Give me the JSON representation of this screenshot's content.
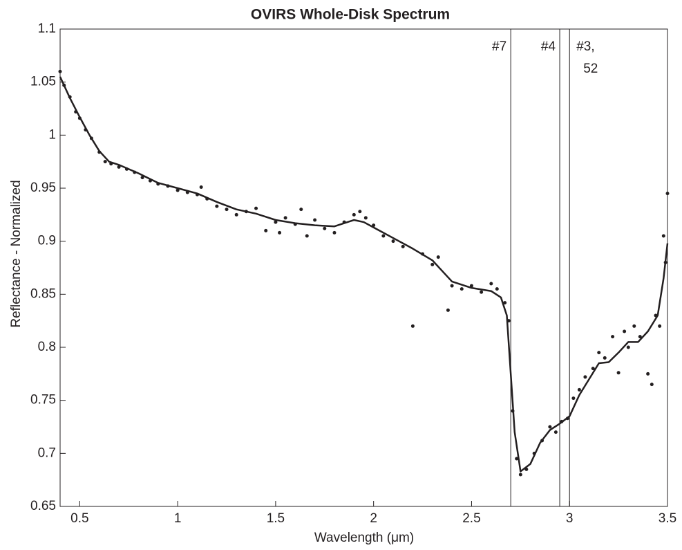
{
  "chart_data": {
    "type": "scatter",
    "title": "OVIRS Whole-Disk Spectrum",
    "x_label": "Wavelength (μm)",
    "y_label": "Reflectance - Normalized",
    "xlim": [
      0.4,
      3.5
    ],
    "ylim": [
      0.65,
      1.1
    ],
    "xticks": [
      0.5,
      1,
      1.5,
      2,
      2.5,
      3,
      3.5
    ],
    "yticks": [
      0.65,
      0.7,
      0.75,
      0.8,
      0.85,
      0.9,
      0.95,
      1,
      1.05,
      1.1
    ],
    "grid": false,
    "color": "#231f20",
    "points": {
      "x": [
        0.4,
        0.42,
        0.45,
        0.48,
        0.5,
        0.53,
        0.56,
        0.6,
        0.63,
        0.66,
        0.7,
        0.74,
        0.78,
        0.82,
        0.86,
        0.9,
        0.95,
        1.0,
        1.05,
        1.1,
        1.12,
        1.15,
        1.2,
        1.25,
        1.3,
        1.35,
        1.4,
        1.45,
        1.5,
        1.52,
        1.55,
        1.6,
        1.63,
        1.66,
        1.7,
        1.75,
        1.8,
        1.85,
        1.9,
        1.93,
        1.96,
        2.0,
        2.05,
        2.1,
        2.15,
        2.2,
        2.25,
        2.3,
        2.33,
        2.38,
        2.4,
        2.45,
        2.5,
        2.55,
        2.6,
        2.63,
        2.67,
        2.69,
        2.71,
        2.73,
        2.75,
        2.78,
        2.82,
        2.86,
        2.9,
        2.93,
        2.96,
        2.99,
        3.02,
        3.05,
        3.08,
        3.12,
        3.15,
        3.18,
        3.22,
        3.25,
        3.28,
        3.3,
        3.33,
        3.36,
        3.4,
        3.42,
        3.44,
        3.46,
        3.48,
        3.49,
        3.5
      ],
      "values": [
        1.06,
        1.047,
        1.036,
        1.022,
        1.016,
        1.005,
        0.997,
        0.984,
        0.975,
        0.973,
        0.97,
        0.968,
        0.965,
        0.96,
        0.957,
        0.954,
        0.952,
        0.948,
        0.946,
        0.944,
        0.951,
        0.94,
        0.933,
        0.93,
        0.925,
        0.928,
        0.931,
        0.91,
        0.918,
        0.908,
        0.922,
        0.916,
        0.93,
        0.905,
        0.92,
        0.912,
        0.908,
        0.918,
        0.925,
        0.928,
        0.922,
        0.915,
        0.905,
        0.9,
        0.895,
        0.82,
        0.888,
        0.878,
        0.885,
        0.835,
        0.858,
        0.855,
        0.858,
        0.852,
        0.86,
        0.855,
        0.842,
        0.825,
        0.74,
        0.695,
        0.68,
        0.685,
        0.7,
        0.712,
        0.725,
        0.72,
        0.73,
        0.733,
        0.752,
        0.76,
        0.772,
        0.78,
        0.795,
        0.79,
        0.81,
        0.776,
        0.815,
        0.8,
        0.82,
        0.81,
        0.775,
        0.765,
        0.83,
        0.82,
        0.905,
        0.88,
        0.945
      ]
    },
    "fit": {
      "x": [
        0.4,
        0.45,
        0.5,
        0.55,
        0.6,
        0.65,
        0.7,
        0.8,
        0.9,
        1.0,
        1.1,
        1.2,
        1.3,
        1.4,
        1.5,
        1.6,
        1.7,
        1.8,
        1.9,
        1.95,
        2.0,
        2.1,
        2.2,
        2.3,
        2.4,
        2.5,
        2.6,
        2.65,
        2.68,
        2.7,
        2.72,
        2.75,
        2.8,
        2.85,
        2.9,
        2.95,
        3.0,
        3.05,
        3.1,
        3.15,
        3.2,
        3.25,
        3.3,
        3.35,
        3.4,
        3.45,
        3.48,
        3.5
      ],
      "values": [
        1.055,
        1.035,
        1.017,
        1.0,
        0.985,
        0.975,
        0.972,
        0.964,
        0.955,
        0.95,
        0.945,
        0.937,
        0.93,
        0.926,
        0.92,
        0.917,
        0.915,
        0.914,
        0.92,
        0.918,
        0.913,
        0.903,
        0.893,
        0.882,
        0.862,
        0.856,
        0.853,
        0.847,
        0.83,
        0.775,
        0.72,
        0.683,
        0.69,
        0.71,
        0.722,
        0.728,
        0.735,
        0.755,
        0.77,
        0.785,
        0.786,
        0.795,
        0.805,
        0.805,
        0.815,
        0.83,
        0.865,
        0.898
      ]
    },
    "markers": [
      {
        "x": 2.7,
        "label": [
          "#7"
        ]
      },
      {
        "x": 2.95,
        "label": [
          "#4"
        ]
      },
      {
        "x": 3.0,
        "label": [
          "#3,",
          "52"
        ]
      }
    ]
  }
}
